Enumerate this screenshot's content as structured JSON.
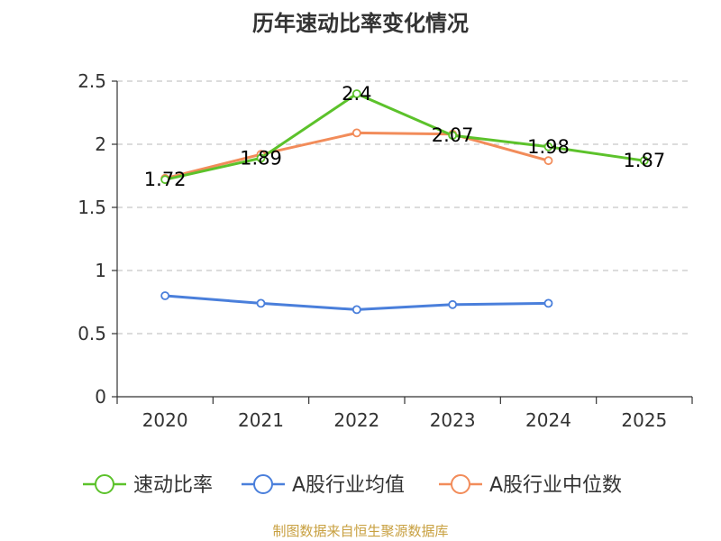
{
  "chart_data": {
    "type": "line",
    "title": "历年速动比率变化情况",
    "categories": [
      "2020",
      "2021",
      "2022",
      "2023",
      "2024",
      "2025"
    ],
    "ylim": [
      0,
      2.5
    ],
    "yticks": [
      "0",
      "0.5",
      "1",
      "1.5",
      "2",
      "2.5"
    ],
    "grid": true,
    "legend_position": "bottom",
    "series": [
      {
        "name": "速动比率",
        "color": "#5cc22b",
        "values": [
          1.72,
          1.89,
          2.4,
          2.07,
          1.98,
          1.87
        ],
        "labels": [
          "1.72",
          "1.89",
          "2.4",
          "2.07",
          "1.98",
          "1.87"
        ]
      },
      {
        "name": "A股行业均值",
        "color": "#4a7fdb",
        "values": [
          0.8,
          0.74,
          0.69,
          0.73,
          0.74,
          null
        ]
      },
      {
        "name": "A股行业中位数",
        "color": "#f28c5a",
        "values": [
          1.73,
          1.92,
          2.09,
          2.08,
          1.87,
          null
        ]
      }
    ]
  },
  "source_text": "制图数据来自恒生聚源数据库"
}
